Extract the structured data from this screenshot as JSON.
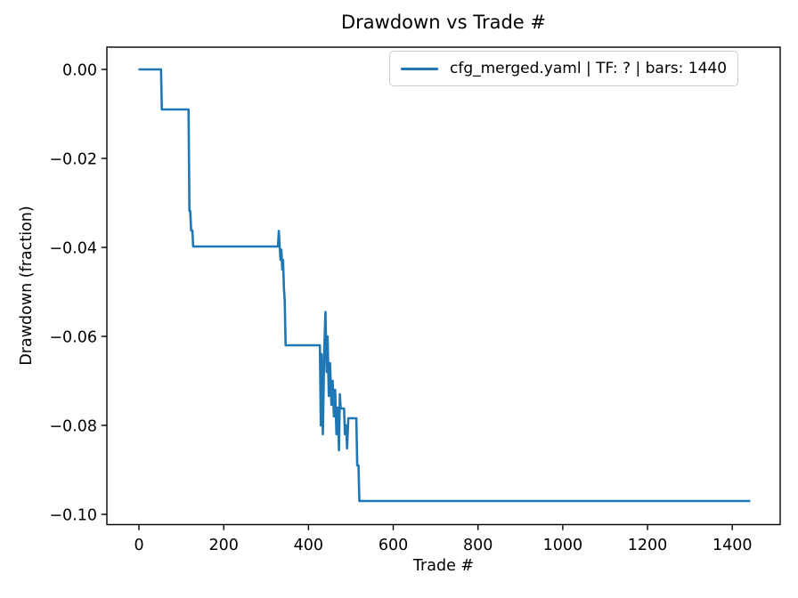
{
  "chart_data": {
    "type": "line",
    "title": "Drawdown vs Trade #",
    "xlabel": "Trade #",
    "ylabel": "Drawdown (fraction)",
    "legend_position": "upper right",
    "grid": false,
    "background_color": "#ffffff",
    "axis_color": "#000000",
    "legend_edge_color": "#cccccc",
    "xlim": [
      -75.7,
      1513
    ],
    "ylim": [
      -0.1023,
      0.005
    ],
    "x_ticks": [
      {
        "value": 0,
        "label": "0"
      },
      {
        "value": 200,
        "label": "200"
      },
      {
        "value": 400,
        "label": "400"
      },
      {
        "value": 600,
        "label": "600"
      },
      {
        "value": 800,
        "label": "800"
      },
      {
        "value": 1000,
        "label": "1000"
      },
      {
        "value": 1200,
        "label": "1200"
      },
      {
        "value": 1400,
        "label": "1400"
      }
    ],
    "y_ticks": [
      {
        "value": 0.0,
        "label": "0.00"
      },
      {
        "value": -0.02,
        "label": "−0.02"
      },
      {
        "value": -0.04,
        "label": "−0.04"
      },
      {
        "value": -0.06,
        "label": "−0.06"
      },
      {
        "value": -0.08,
        "label": "−0.08"
      },
      {
        "value": -0.1,
        "label": "−0.10"
      }
    ],
    "series": [
      {
        "name": "cfg_merged.yaml | TF: ? | bars: 1440",
        "color": "#1f77b4",
        "points": [
          [
            1,
            0.0
          ],
          [
            52,
            0.0
          ],
          [
            54,
            -0.009
          ],
          [
            117,
            -0.009
          ],
          [
            119,
            -0.0318
          ],
          [
            121,
            -0.0318
          ],
          [
            123,
            -0.0362
          ],
          [
            126,
            -0.0362
          ],
          [
            128,
            -0.0398
          ],
          [
            328,
            -0.0398
          ],
          [
            330,
            -0.0363
          ],
          [
            332,
            -0.0398
          ],
          [
            334,
            -0.0428
          ],
          [
            336,
            -0.0405
          ],
          [
            338,
            -0.045
          ],
          [
            340,
            -0.0428
          ],
          [
            342,
            -0.0492
          ],
          [
            344,
            -0.052
          ],
          [
            346,
            -0.062
          ],
          [
            427,
            -0.062
          ],
          [
            429,
            -0.08
          ],
          [
            431,
            -0.064
          ],
          [
            434,
            -0.082
          ],
          [
            437,
            -0.0638
          ],
          [
            440,
            -0.0545
          ],
          [
            443,
            -0.068
          ],
          [
            445,
            -0.06
          ],
          [
            448,
            -0.0734
          ],
          [
            451,
            -0.066
          ],
          [
            454,
            -0.0754
          ],
          [
            457,
            -0.07
          ],
          [
            460,
            -0.078
          ],
          [
            463,
            -0.072
          ],
          [
            466,
            -0.082
          ],
          [
            469,
            -0.076
          ],
          [
            472,
            -0.0856
          ],
          [
            474,
            -0.073
          ],
          [
            476,
            -0.0762
          ],
          [
            484,
            -0.0762
          ],
          [
            486,
            -0.082
          ],
          [
            489,
            -0.08
          ],
          [
            491,
            -0.0852
          ],
          [
            494,
            -0.0784
          ],
          [
            513,
            -0.0784
          ],
          [
            515,
            -0.089
          ],
          [
            518,
            -0.089
          ],
          [
            520,
            -0.097
          ],
          [
            1440,
            -0.097
          ]
        ]
      }
    ]
  }
}
